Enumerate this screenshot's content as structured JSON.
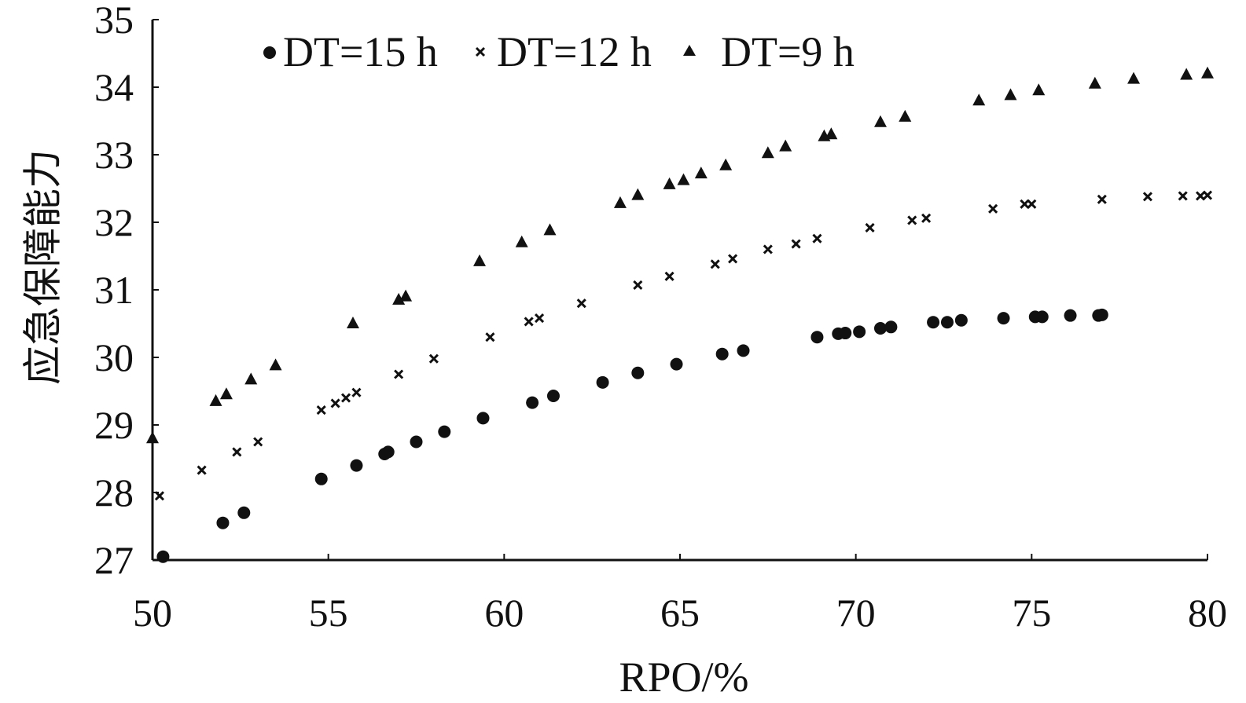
{
  "chart_data": {
    "type": "scatter",
    "title": "",
    "xlabel": "RPO/%",
    "ylabel": "应急保障能力",
    "xlim": [
      50,
      80
    ],
    "ylim": [
      27,
      35
    ],
    "xticks": [
      "50",
      "55",
      "60",
      "65",
      "70",
      "75",
      "80"
    ],
    "yticks": [
      "27",
      "28",
      "29",
      "30",
      "31",
      "32",
      "33",
      "34",
      "35"
    ],
    "grid": false,
    "legend_position": "top",
    "series": [
      {
        "name": "DT=15 h",
        "marker": "circle",
        "x": [
          50.3,
          52.0,
          52.6,
          54.8,
          55.8,
          56.6,
          56.7,
          57.5,
          58.3,
          59.4,
          60.8,
          61.4,
          62.8,
          63.8,
          64.9,
          66.2,
          66.8,
          68.9,
          69.5,
          69.7,
          70.1,
          70.7,
          71.0,
          72.2,
          72.6,
          73.0,
          74.2,
          75.1,
          75.3,
          76.1,
          76.9,
          77.0
        ],
        "y": [
          27.05,
          27.55,
          27.7,
          28.2,
          28.4,
          28.57,
          28.6,
          28.75,
          28.9,
          29.1,
          29.33,
          29.43,
          29.63,
          29.77,
          29.9,
          30.05,
          30.1,
          30.3,
          30.35,
          30.36,
          30.38,
          30.43,
          30.45,
          30.52,
          30.52,
          30.55,
          30.58,
          30.6,
          30.6,
          30.62,
          30.62,
          30.63
        ]
      },
      {
        "name": "DT=12 h",
        "marker": "x",
        "x": [
          50.2,
          51.4,
          52.4,
          53.0,
          54.8,
          55.2,
          55.5,
          55.8,
          57.0,
          58.0,
          59.6,
          60.7,
          61.0,
          62.2,
          63.8,
          64.7,
          66.0,
          66.5,
          67.5,
          68.3,
          68.9,
          70.4,
          71.6,
          72.0,
          73.9,
          74.8,
          75.0,
          77.0,
          78.3,
          79.3,
          79.8,
          80.0
        ],
        "y": [
          27.95,
          28.33,
          28.6,
          28.75,
          29.22,
          29.32,
          29.4,
          29.48,
          29.75,
          29.98,
          30.3,
          30.53,
          30.58,
          30.8,
          31.07,
          31.2,
          31.38,
          31.46,
          31.6,
          31.68,
          31.76,
          31.92,
          32.03,
          32.06,
          32.2,
          32.27,
          32.27,
          32.34,
          32.38,
          32.39,
          32.39,
          32.4
        ]
      },
      {
        "name": "DT=9 h",
        "marker": "triangle",
        "x": [
          50.0,
          51.8,
          52.1,
          52.8,
          53.5,
          55.7,
          57.0,
          57.2,
          59.3,
          60.5,
          61.3,
          63.3,
          63.8,
          64.7,
          65.1,
          65.6,
          66.3,
          67.5,
          68.0,
          69.1,
          69.3,
          70.7,
          71.4,
          73.5,
          74.4,
          75.2,
          76.8,
          77.9,
          79.4,
          80.0
        ],
        "y": [
          28.8,
          29.35,
          29.45,
          29.67,
          29.88,
          30.5,
          30.85,
          30.9,
          31.42,
          31.7,
          31.88,
          32.28,
          32.4,
          32.56,
          32.62,
          32.72,
          32.84,
          33.02,
          33.12,
          33.27,
          33.3,
          33.48,
          33.56,
          33.8,
          33.88,
          33.95,
          34.05,
          34.12,
          34.18,
          34.2
        ]
      }
    ]
  }
}
